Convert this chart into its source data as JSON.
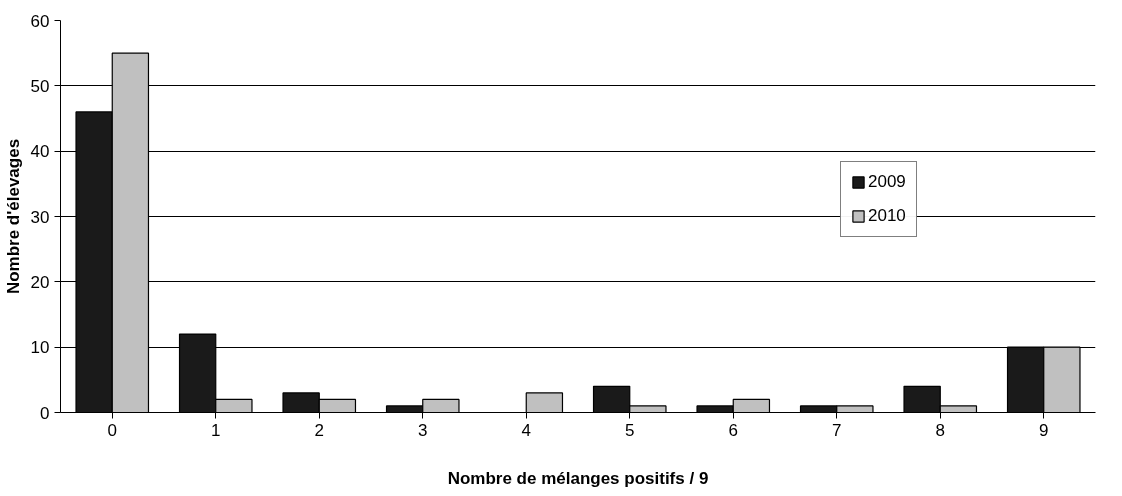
{
  "chart_data": {
    "type": "bar",
    "xlabel": "Nombre de mélanges positifs / 9",
    "ylabel": "Nombre d'élevages",
    "categories": [
      "0",
      "1",
      "2",
      "3",
      "4",
      "5",
      "6",
      "7",
      "8",
      "9"
    ],
    "series": [
      {
        "name": "2009",
        "color": "#1a1a1a",
        "values": [
          46,
          12,
          3,
          1,
          0,
          4,
          1,
          1,
          4,
          10
        ]
      },
      {
        "name": "2010",
        "color": "#c0c0c0",
        "values": [
          55,
          2,
          2,
          2,
          3,
          1,
          2,
          1,
          1,
          10
        ]
      }
    ],
    "ylim": [
      0,
      60
    ],
    "yticks": [
      0,
      10,
      20,
      30,
      40,
      50,
      60
    ],
    "grid": "y",
    "legend": "right"
  }
}
